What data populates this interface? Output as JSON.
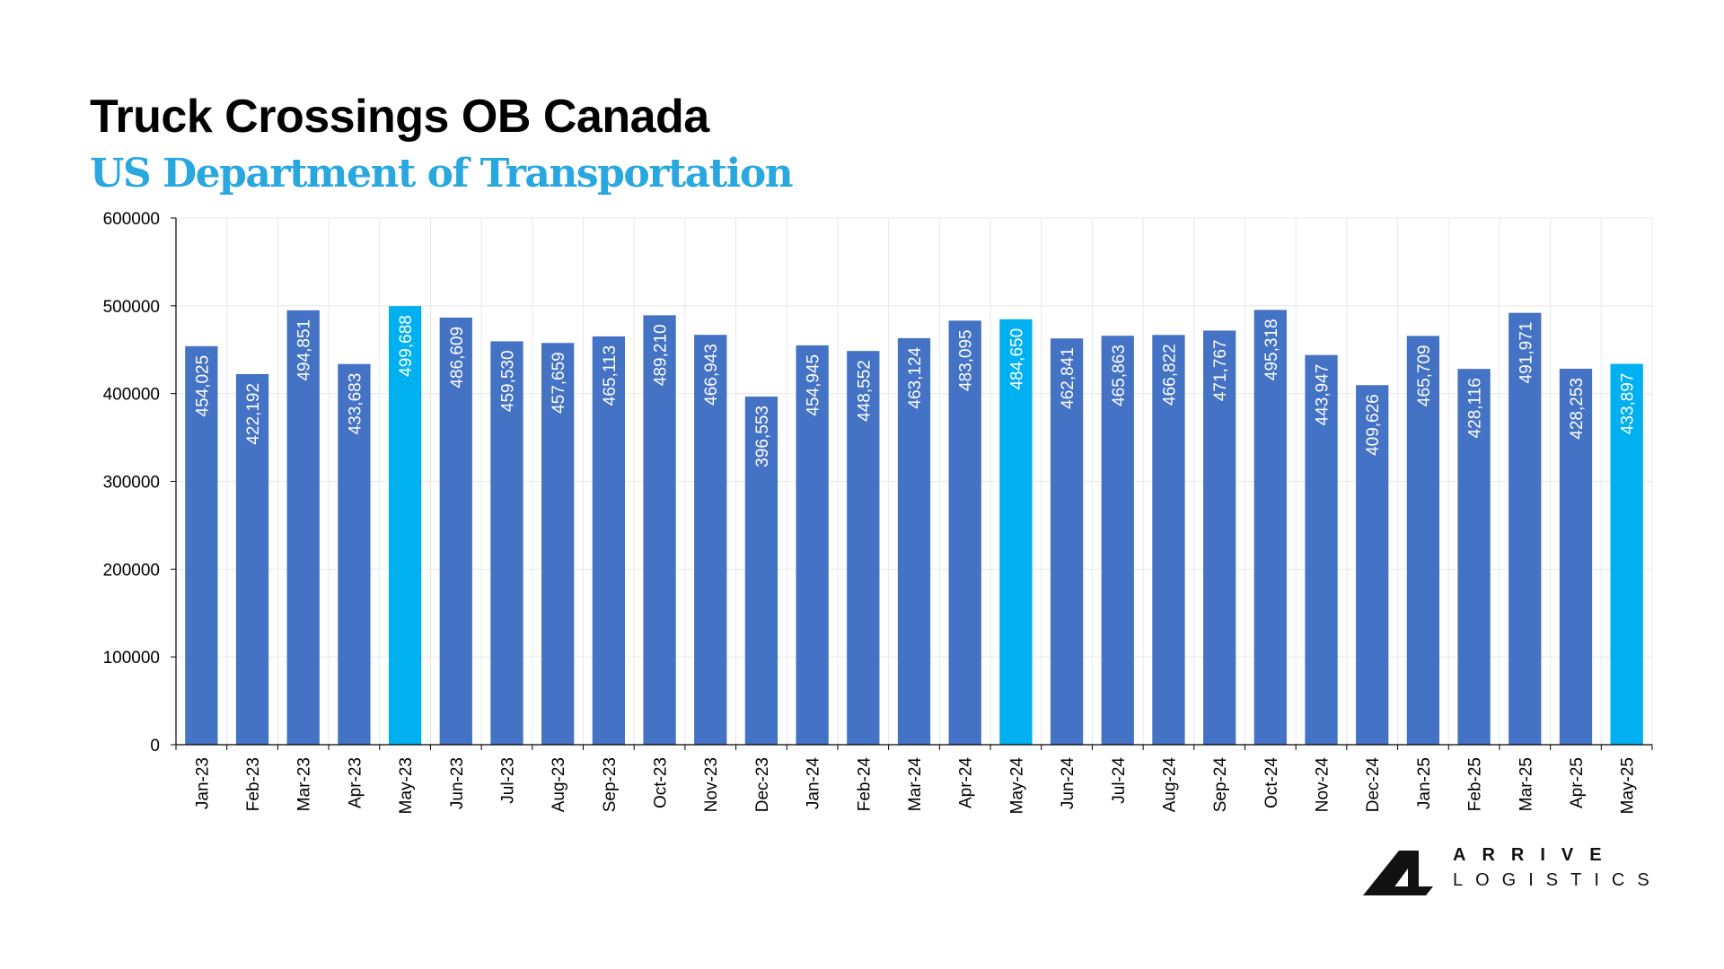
{
  "chart_data": {
    "type": "bar",
    "title": "Truck Crossings OB Canada",
    "subtitle": "US Department of Transportation",
    "xlabel": "",
    "ylabel": "",
    "ylim": [
      0,
      600000
    ],
    "yticks": [
      0,
      100000,
      200000,
      300000,
      400000,
      500000,
      600000
    ],
    "ytick_labels": [
      "0",
      "100000",
      "200000",
      "300000",
      "400000",
      "500000",
      "600000"
    ],
    "grid": true,
    "categories": [
      "Jan-23",
      "Feb-23",
      "Mar-23",
      "Apr-23",
      "May-23",
      "Jun-23",
      "Jul-23",
      "Aug-23",
      "Sep-23",
      "Oct-23",
      "Nov-23",
      "Dec-23",
      "Jan-24",
      "Feb-24",
      "Mar-24",
      "Apr-24",
      "May-24",
      "Jun-24",
      "Jul-24",
      "Aug-24",
      "Sep-24",
      "Oct-24",
      "Nov-24",
      "Dec-24",
      "Jan-25",
      "Feb-25",
      "Mar-25",
      "Apr-25",
      "May-25"
    ],
    "values": [
      454025,
      422192,
      494851,
      433683,
      499688,
      486609,
      459530,
      457659,
      465113,
      489210,
      466943,
      396553,
      454945,
      448552,
      463124,
      483095,
      484650,
      462841,
      465863,
      466822,
      471767,
      495318,
      443947,
      409626,
      465709,
      428116,
      491971,
      428253,
      433897
    ],
    "value_labels": [
      "454,025",
      "422,192",
      "494,851",
      "433,683",
      "499,688",
      "486,609",
      "459,530",
      "457,659",
      "465,113",
      "489,210",
      "466,943",
      "396,553",
      "454,945",
      "448,552",
      "463,124",
      "483,095",
      "484,650",
      "462,841",
      "465,863",
      "466,822",
      "471,767",
      "495,318",
      "443,947",
      "409,626",
      "465,709",
      "428,116",
      "491,971",
      "428,253",
      "433,897"
    ],
    "highlighted_categories": [
      "May-23",
      "May-24",
      "May-25"
    ],
    "colors": {
      "bar": "#4472c4",
      "highlight": "#00b0f0",
      "label": "#ffffff",
      "grid": "#e8e8e8",
      "axis": "#000000"
    }
  },
  "logo": {
    "line1": "ARRIVE",
    "line2": "LOGISTICS",
    "mark": "arrive-a-logo"
  }
}
